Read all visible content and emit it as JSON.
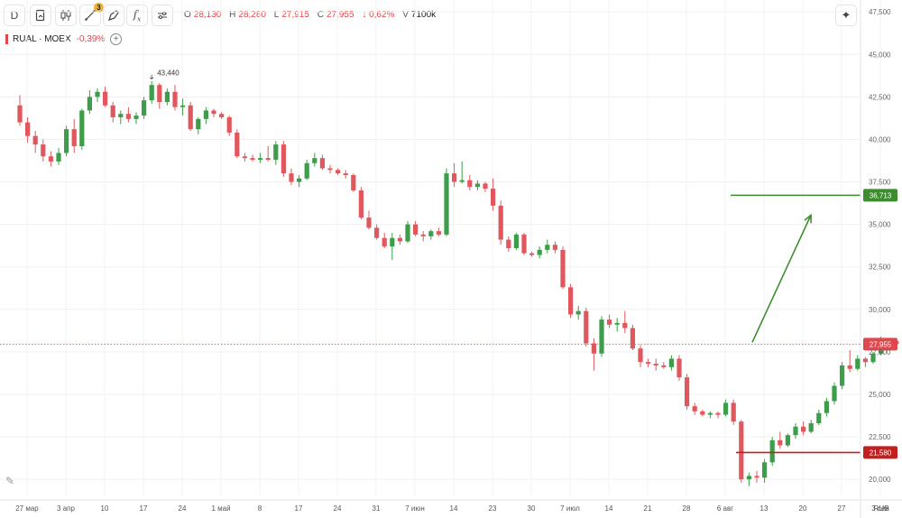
{
  "toolbar": {
    "interval_label": "D",
    "drawings_badge": "3",
    "fx_label": "f",
    "fx_sub": "x",
    "buttons": [
      "interval-button",
      "chart-type-button",
      "candles-button",
      "drawing-tools-button",
      "pen-button",
      "indicators-button",
      "settings-button"
    ]
  },
  "ohlc": {
    "o_key": "O",
    "o_val": "28,130",
    "h_key": "H",
    "h_val": "28,280",
    "l_key": "L",
    "l_val": "27,915",
    "c_key": "C",
    "c_val": "27,955",
    "change": "↓ 0,62%",
    "v_key": "V",
    "v_val": "7100k"
  },
  "legend": {
    "symbol": "RUAL · MOEX",
    "change": "-0,39%"
  },
  "chart_data": {
    "type": "candlestick",
    "currency": "RUB",
    "y_ticks": [
      "20,000",
      "22,500",
      "25,000",
      "27,500",
      "30,000",
      "32,500",
      "35,000",
      "37,500",
      "40,000",
      "42,500",
      "45,000",
      "47,500"
    ],
    "ylim": [
      19000,
      48200
    ],
    "x_ticks": [
      "27 мар",
      "3 апр",
      "10",
      "17",
      "24",
      "1 май",
      "8",
      "17",
      "24",
      "31",
      "7 июн",
      "14",
      "23",
      "30",
      "7 июл",
      "14",
      "21",
      "28",
      "6 авг",
      "13",
      "20",
      "27",
      "3 сен"
    ],
    "x_ticks_idx": [
      0,
      5,
      10,
      15,
      20,
      25,
      30,
      35,
      40,
      45,
      50,
      55,
      60,
      65,
      70,
      75,
      80,
      85,
      90,
      95,
      100,
      105,
      110
    ],
    "annotation_max": "43,440",
    "last_price": {
      "label": "27,955",
      "value": 27955,
      "color": "#e0484f"
    },
    "target": {
      "label": "36,713",
      "value": 36713,
      "color": "#3d8c2f"
    },
    "stop": {
      "label": "21,580",
      "value": 21580,
      "color": "#c0201e"
    },
    "candles": [
      [
        42000,
        42600,
        40800,
        41000
      ],
      [
        41000,
        41300,
        39800,
        40200
      ],
      [
        40200,
        40500,
        39200,
        39700
      ],
      [
        39700,
        40000,
        38700,
        39000
      ],
      [
        39000,
        39300,
        38400,
        38700
      ],
      [
        38700,
        39500,
        38500,
        39200
      ],
      [
        39200,
        40800,
        39000,
        40600
      ],
      [
        40600,
        41200,
        39200,
        39600
      ],
      [
        39600,
        41800,
        39400,
        41700
      ],
      [
        41700,
        42900,
        41500,
        42500
      ],
      [
        42500,
        43000,
        42200,
        42800
      ],
      [
        42800,
        43100,
        41900,
        42000
      ],
      [
        42000,
        42200,
        41000,
        41300
      ],
      [
        41300,
        41700,
        40900,
        41500
      ],
      [
        41500,
        41900,
        41000,
        41200
      ],
      [
        41200,
        41600,
        40900,
        41400
      ],
      [
        41400,
        42500,
        41200,
        42300
      ],
      [
        42300,
        43440,
        42100,
        43200
      ],
      [
        43200,
        43300,
        41800,
        42200
      ],
      [
        42200,
        43000,
        42000,
        42800
      ],
      [
        42800,
        43200,
        41700,
        41900
      ],
      [
        41900,
        42400,
        41400,
        42000
      ],
      [
        42000,
        42200,
        40500,
        40600
      ],
      [
        40600,
        41300,
        40300,
        41200
      ],
      [
        41200,
        41900,
        40900,
        41700
      ],
      [
        41700,
        41800,
        41300,
        41500
      ],
      [
        41500,
        41600,
        41200,
        41300
      ],
      [
        41300,
        41400,
        40200,
        40400
      ],
      [
        40400,
        40600,
        38900,
        39000
      ],
      [
        39000,
        39200,
        38700,
        38900
      ],
      [
        38900,
        39100,
        38700,
        38800
      ],
      [
        38800,
        39200,
        38600,
        38900
      ],
      [
        38900,
        39600,
        38700,
        38800
      ],
      [
        38800,
        39900,
        38500,
        39700
      ],
      [
        39700,
        39900,
        37800,
        38000
      ],
      [
        38000,
        38300,
        37300,
        37500
      ],
      [
        37500,
        37900,
        37200,
        37700
      ],
      [
        37700,
        38800,
        37600,
        38600
      ],
      [
        38600,
        39200,
        38400,
        38900
      ],
      [
        38900,
        39100,
        38200,
        38300
      ],
      [
        38300,
        38500,
        38000,
        38200
      ],
      [
        38200,
        38300,
        37900,
        38000
      ],
      [
        38000,
        38200,
        37700,
        37900
      ],
      [
        37900,
        38000,
        36900,
        37000
      ],
      [
        37000,
        37200,
        35300,
        35400
      ],
      [
        35400,
        35800,
        34700,
        34800
      ],
      [
        34800,
        35000,
        34100,
        34200
      ],
      [
        34200,
        34500,
        33600,
        33700
      ],
      [
        33700,
        34500,
        32900,
        34200
      ],
      [
        34200,
        34400,
        33800,
        34000
      ],
      [
        34000,
        35200,
        33900,
        35000
      ],
      [
        35000,
        35200,
        34300,
        34400
      ],
      [
        34400,
        34600,
        34000,
        34300
      ],
      [
        34300,
        34700,
        34100,
        34600
      ],
      [
        34600,
        34800,
        34300,
        34400
      ],
      [
        34400,
        38300,
        34300,
        38000
      ],
      [
        38000,
        38600,
        37200,
        37500
      ],
      [
        37500,
        38700,
        37400,
        37600
      ],
      [
        37600,
        37900,
        37000,
        37200
      ],
      [
        37200,
        37600,
        37000,
        37400
      ],
      [
        37400,
        37500,
        36900,
        37100
      ],
      [
        37100,
        37700,
        35800,
        36100
      ],
      [
        36100,
        36400,
        33800,
        34100
      ],
      [
        34100,
        34300,
        33400,
        33600
      ],
      [
        33600,
        34500,
        33500,
        34400
      ],
      [
        34400,
        34500,
        33200,
        33300
      ],
      [
        33300,
        33400,
        33100,
        33200
      ],
      [
        33200,
        33700,
        33000,
        33500
      ],
      [
        33500,
        34100,
        33300,
        33800
      ],
      [
        33800,
        34000,
        33300,
        33500
      ],
      [
        33500,
        33700,
        31200,
        31300
      ],
      [
        31300,
        31500,
        29500,
        29700
      ],
      [
        29700,
        30200,
        29400,
        29900
      ],
      [
        29900,
        30100,
        27800,
        28000
      ],
      [
        28000,
        28300,
        26400,
        27400
      ],
      [
        27400,
        29600,
        27200,
        29400
      ],
      [
        29400,
        29700,
        28900,
        29100
      ],
      [
        29100,
        29500,
        28700,
        29200
      ],
      [
        29200,
        29900,
        28600,
        28900
      ],
      [
        28900,
        29100,
        27600,
        27700
      ],
      [
        27700,
        27900,
        26600,
        26900
      ],
      [
        26900,
        27100,
        26600,
        26800
      ],
      [
        26800,
        27100,
        26400,
        26700
      ],
      [
        26700,
        26900,
        26500,
        26600
      ],
      [
        26600,
        27300,
        26400,
        27100
      ],
      [
        27100,
        27300,
        25800,
        26000
      ],
      [
        26000,
        26200,
        24100,
        24300
      ],
      [
        24300,
        24500,
        23800,
        24000
      ],
      [
        24000,
        24100,
        23700,
        23800
      ],
      [
        23800,
        24000,
        23600,
        23900
      ],
      [
        23900,
        24000,
        23600,
        23800
      ],
      [
        23800,
        24700,
        23700,
        24500
      ],
      [
        24500,
        24700,
        23200,
        23400
      ],
      [
        23400,
        23500,
        19800,
        20000
      ],
      [
        20000,
        20400,
        19600,
        20200
      ],
      [
        20200,
        20500,
        19800,
        20100
      ],
      [
        20100,
        21200,
        19800,
        21000
      ],
      [
        21000,
        22500,
        20800,
        22300
      ],
      [
        22300,
        22800,
        21800,
        22000
      ],
      [
        22000,
        22700,
        21900,
        22600
      ],
      [
        22600,
        23300,
        22400,
        23100
      ],
      [
        23100,
        23400,
        22600,
        22800
      ],
      [
        22800,
        23500,
        22700,
        23300
      ],
      [
        23300,
        24100,
        23200,
        23900
      ],
      [
        23900,
        24800,
        23700,
        24600
      ],
      [
        24600,
        25700,
        24400,
        25500
      ],
      [
        25500,
        26900,
        25300,
        26700
      ],
      [
        26700,
        27600,
        26300,
        26500
      ],
      [
        26500,
        27300,
        26400,
        27100
      ],
      [
        27100,
        27200,
        26600,
        26900
      ],
      [
        26900,
        27500,
        26800,
        27400
      ],
      [
        27400,
        28400,
        27300,
        28200
      ],
      [
        28200,
        28300,
        27900,
        28000
      ],
      [
        28130,
        28280,
        27915,
        27955
      ]
    ]
  }
}
